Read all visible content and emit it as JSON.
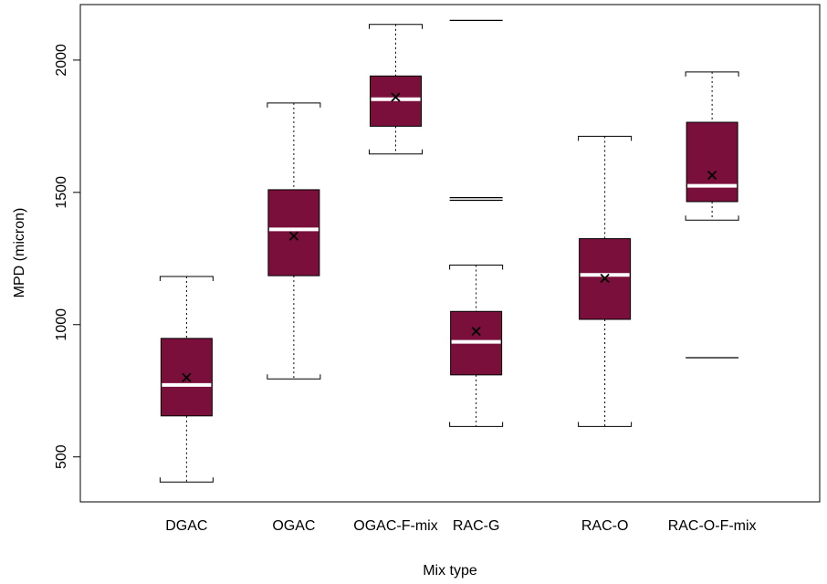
{
  "chart_data": {
    "type": "boxplot",
    "title": "",
    "xlabel": "Mix type",
    "ylabel": "MPD (micron)",
    "ylim": [
      330,
      2210
    ],
    "yticks": [
      500,
      1000,
      1500,
      2000
    ],
    "grid": false,
    "legend": "none",
    "colors": {
      "box_fill": "#7b0f3c",
      "median": "#ffffff",
      "outline": "#000000"
    },
    "categories": [
      "DGAC",
      "OGAC",
      "OGAC-F-mix",
      "RAC-G",
      "RAC-O",
      "RAC-O-F-mix"
    ],
    "x_positions": [
      1,
      2,
      2.95,
      3.7,
      4.9,
      5.9
    ],
    "boxes": [
      {
        "category": "DGAC",
        "whisker_low": 405,
        "q1": 655,
        "median": 772,
        "q3": 948,
        "whisker_high": 1182,
        "mean": 800,
        "outliers": []
      },
      {
        "category": "OGAC",
        "whisker_low": 795,
        "q1": 1185,
        "median": 1360,
        "q3": 1510,
        "whisker_high": 1838,
        "mean": 1335,
        "outliers": []
      },
      {
        "category": "OGAC-F-mix",
        "whisker_low": 1645,
        "q1": 1750,
        "median": 1852,
        "q3": 1940,
        "whisker_high": 2135,
        "mean": 1860,
        "outliers": []
      },
      {
        "category": "RAC-G",
        "whisker_low": 615,
        "q1": 810,
        "median": 935,
        "q3": 1050,
        "whisker_high": 1225,
        "mean": 975,
        "outliers": [
          1470,
          1480,
          2150
        ]
      },
      {
        "category": "RAC-O",
        "whisker_low": 615,
        "q1": 1020,
        "median": 1188,
        "q3": 1325,
        "whisker_high": 1712,
        "mean": 1175,
        "outliers": []
      },
      {
        "category": "RAC-O-F-mix",
        "whisker_low": 1395,
        "q1": 1465,
        "median": 1525,
        "q3": 1765,
        "whisker_high": 1955,
        "mean": 1565,
        "outliers": [
          875
        ]
      }
    ]
  }
}
